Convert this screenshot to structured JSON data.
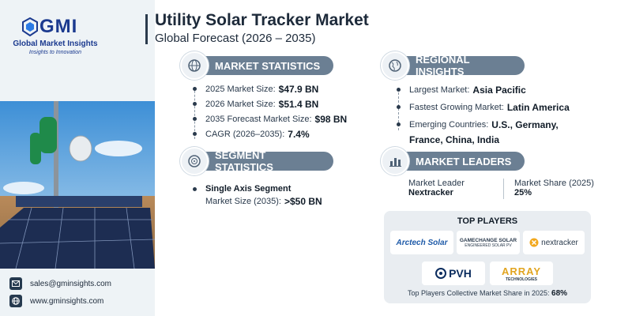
{
  "brand": {
    "logo_text": "GMI",
    "name": "Global Market Insights",
    "tagline": "Insights to Innovation"
  },
  "header": {
    "title": "Utility Solar Tracker Market",
    "subtitle": "Global Forecast (2026 – 2035)"
  },
  "market_statistics": {
    "heading": "MARKET STATISTICS",
    "items": [
      {
        "label": "2025 Market Size:",
        "value": "$47.9 BN"
      },
      {
        "label": "2026 Market Size:",
        "value": "$51.4 BN"
      },
      {
        "label": "2035 Forecast Market Size:",
        "value": "$98 BN"
      },
      {
        "label": "CAGR (2026–2035):",
        "value": "7.4%"
      }
    ]
  },
  "regional_insights": {
    "heading": "REGIONAL INSIGHTS",
    "largest_label": "Largest Market:",
    "largest_value": "Asia Pacific",
    "fastest_label": "Fastest Growing Market:",
    "fastest_value": "Latin America",
    "emerging_label": "Emerging Countries:",
    "emerging_value_line1": "U.S., Germany,",
    "emerging_value_line2": "France, China, India"
  },
  "segment_statistics": {
    "heading": "SEGMENT STATISTICS",
    "segment": "Single Axis Segment",
    "size_label": "Market Size (2035):",
    "size_value": ">$50 BN"
  },
  "market_leaders": {
    "heading": "MARKET LEADERS",
    "leader_label": "Market Leader",
    "leader_value": "Nextracker",
    "share_label": "Market Share (2025)",
    "share_value": "25%"
  },
  "top_players": {
    "heading": "TOP PLAYERS",
    "logos": {
      "arctech": "Arctech Solar",
      "gamechange": "GAMECHANGE SOLAR",
      "gamechange_sub": "ENGINEERED SOLAR PV",
      "nextracker": "nextracker",
      "pvh": "PVH",
      "array": "ARRAY",
      "array_sub": "TECHNOLOGIES"
    },
    "footer_label": "Top Players Collective Market Share in 2025:",
    "footer_value": "68%"
  },
  "contact": {
    "email": "sales@gminsights.com",
    "website": "www.gminsights.com"
  },
  "colors": {
    "section_label_bg": "#6b7f93",
    "brand_blue": "#1b3a8f",
    "dark_text": "#111c28"
  }
}
